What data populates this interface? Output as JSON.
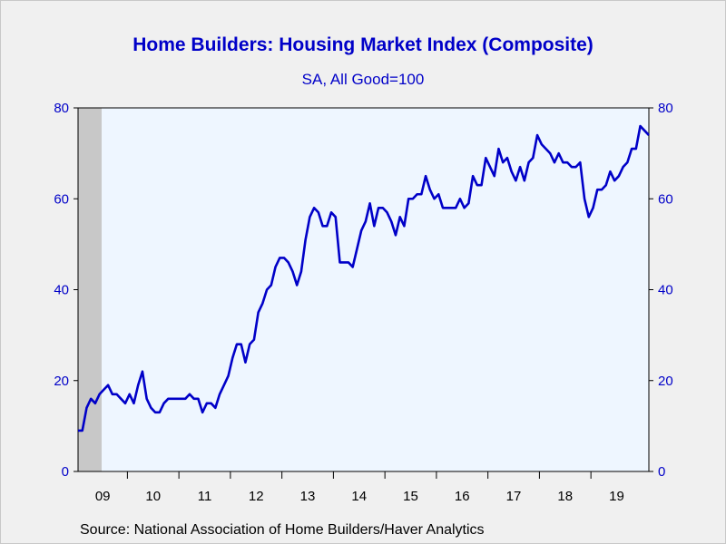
{
  "chart_data": {
    "type": "line",
    "title": "Home Builders: Housing Market Index (Composite)",
    "subtitle": "SA, All Good=100",
    "source": "Source:  National Association of Home Builders/Haver Analytics",
    "ylim": [
      0,
      80
    ],
    "yticks": [
      0,
      20,
      40,
      60,
      80
    ],
    "x_start": "2009-01",
    "x_labels": [
      "09",
      "10",
      "11",
      "12",
      "13",
      "14",
      "15",
      "16",
      "17",
      "18",
      "19"
    ],
    "recession_shading": [
      "2009-01",
      "2009-06"
    ],
    "grid": false,
    "line_color": "#0000c8",
    "series": [
      {
        "values": [
          9,
          9,
          14,
          16,
          15,
          17,
          18,
          19,
          17,
          17,
          16,
          15,
          17,
          15,
          19,
          22,
          16,
          14,
          13,
          13,
          15,
          16,
          16,
          16,
          16,
          16,
          17,
          16,
          16,
          13,
          15,
          15,
          14,
          17,
          19,
          21,
          25,
          28,
          28,
          24,
          28,
          29,
          35,
          37,
          40,
          41,
          45,
          47,
          47,
          46,
          44,
          41,
          44,
          51,
          56,
          58,
          57,
          54,
          54,
          57,
          56,
          46,
          46,
          46,
          45,
          49,
          53,
          55,
          59,
          54,
          58,
          58,
          57,
          55,
          52,
          56,
          54,
          60,
          60,
          61,
          61,
          65,
          62,
          60,
          61,
          58,
          58,
          58,
          58,
          60,
          58,
          59,
          65,
          63,
          63,
          69,
          67,
          65,
          71,
          68,
          69,
          66,
          64,
          67,
          64,
          68,
          69,
          74,
          72,
          71,
          70,
          68,
          70,
          68,
          68,
          67,
          67,
          68,
          60,
          56,
          58,
          62,
          62,
          63,
          66,
          64,
          65,
          67,
          68,
          71,
          71,
          76,
          75,
          74
        ]
      }
    ]
  }
}
